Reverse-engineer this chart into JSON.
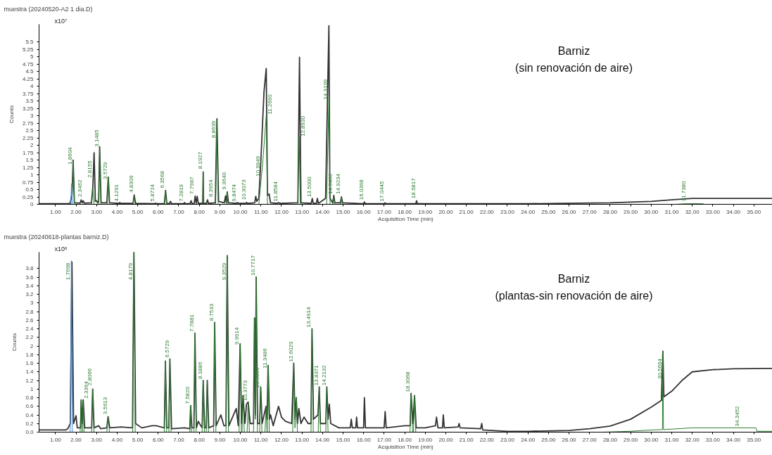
{
  "chart_data": [
    {
      "type": "line",
      "title": "muestra (20240520-A2 1 dia.D)",
      "subtitle": "Barniz\n(sin renovación de aire)",
      "xlabel": "Acquisition Time (min)",
      "ylabel": "Counts",
      "xlim": [
        0.2,
        35.9
      ],
      "ylim": [
        0,
        6.1
      ],
      "xticks": [
        {
          "value": 1,
          "label": "1.00"
        },
        {
          "value": 2,
          "label": "2.00"
        },
        {
          "value": 3,
          "label": "3.00"
        },
        {
          "value": 4,
          "label": "4.00"
        },
        {
          "value": 5,
          "label": "5.00"
        },
        {
          "value": 6,
          "label": "6.00"
        },
        {
          "value": 7,
          "label": "7.00"
        },
        {
          "value": 8,
          "label": "8.00"
        },
        {
          "value": 9,
          "label": "9.00"
        },
        {
          "value": 10,
          "label": "10.00"
        },
        {
          "value": 11,
          "label": "11.00"
        },
        {
          "value": 12,
          "label": "12.00"
        },
        {
          "value": 13,
          "label": "13.00"
        },
        {
          "value": 14,
          "label": "14.00"
        },
        {
          "value": 15,
          "label": "15.00"
        },
        {
          "value": 16,
          "label": "16.00"
        },
        {
          "value": 17,
          "label": "17.00"
        },
        {
          "value": 18,
          "label": "18.00"
        },
        {
          "value": 19,
          "label": "19.00"
        },
        {
          "value": 20,
          "label": "20.00"
        },
        {
          "value": 21,
          "label": "21.00"
        },
        {
          "value": 22,
          "label": "22.00"
        },
        {
          "value": 23,
          "label": "23.00"
        },
        {
          "value": 24,
          "label": "24.00"
        },
        {
          "value": 25,
          "label": "25.00"
        },
        {
          "value": 26,
          "label": "26.00"
        },
        {
          "value": 27,
          "label": "27.00"
        },
        {
          "value": 28,
          "label": "28.00"
        },
        {
          "value": 29,
          "label": "29.00"
        },
        {
          "value": 30,
          "label": "30.00"
        },
        {
          "value": 31,
          "label": "31.00"
        },
        {
          "value": 32,
          "label": "32.00"
        },
        {
          "value": 33,
          "label": "33.00"
        },
        {
          "value": 34,
          "label": "34.00"
        },
        {
          "value": 35,
          "label": "35.00"
        }
      ],
      "yticks": [
        0,
        0.25,
        0.5,
        0.75,
        1,
        1.25,
        1.5,
        1.75,
        2,
        2.25,
        2.5,
        2.75,
        3,
        3.25,
        3.5,
        3.75,
        4,
        4.25,
        4.5,
        4.75,
        5,
        5.25,
        5.5
      ],
      "grid": false,
      "series": [
        {
          "color": "#333333",
          "x": [
            0.2,
            1.7,
            1.8,
            1.86,
            1.92,
            2.2,
            2.25,
            2.3,
            2.35,
            2.4,
            2.75,
            2.82,
            2.88,
            2.94,
            3.0,
            3.05,
            3.1,
            3.15,
            3.22,
            3.5,
            3.57,
            3.63,
            4.1,
            4.13,
            4.16,
            4.78,
            4.83,
            4.9,
            5.85,
            5.87,
            5.9,
            6.3,
            6.36,
            6.42,
            6.55,
            6.6,
            6.65,
            7.25,
            7.28,
            7.31,
            7.55,
            7.6,
            7.65,
            7.75,
            7.8,
            7.85,
            7.9,
            7.95,
            8.17,
            8.19,
            8.21,
            8.35,
            8.4,
            8.45,
            8.78,
            8.86,
            8.94,
            9.22,
            9.28,
            9.32,
            9.36,
            9.42,
            9.8,
            9.85,
            9.9,
            10.25,
            10.3,
            10.35,
            10.7,
            10.75,
            10.8,
            10.9,
            11.0,
            11.15,
            11.26,
            11.32,
            11.4,
            11.47,
            11.8,
            11.86,
            11.92,
            12.8,
            12.88,
            12.95,
            13.45,
            13.5,
            13.55,
            13.7,
            13.75,
            13.8,
            14.15,
            14.31,
            14.36,
            14.5,
            14.55,
            14.6,
            14.87,
            14.92,
            14.98,
            16.0,
            16.04,
            16.08,
            17.0,
            17.04,
            17.08,
            18.54,
            18.58,
            18.62,
            24,
            28,
            30,
            31,
            32,
            35.9
          ],
          "values": [
            0.02,
            0.02,
            0.3,
            1.5,
            0.05,
            0.04,
            0.15,
            0.05,
            0.12,
            0.04,
            0.05,
            0.6,
            1.75,
            0.1,
            0.12,
            0.05,
            0.1,
            1.95,
            0.05,
            0.05,
            0.92,
            0.05,
            0.03,
            0.06,
            0.03,
            0.03,
            0.32,
            0.03,
            0.02,
            0.04,
            0.02,
            0.02,
            0.47,
            0.03,
            0.02,
            0.1,
            0.02,
            0.02,
            0.06,
            0.02,
            0.02,
            0.12,
            0.02,
            0.02,
            0.28,
            0.03,
            0.27,
            0.03,
            0.03,
            1.1,
            0.03,
            0.03,
            0.15,
            0.03,
            0.05,
            2.9,
            0.1,
            0.05,
            0.28,
            0.05,
            0.42,
            0.05,
            0.03,
            0.06,
            0.03,
            0.03,
            0.06,
            0.03,
            0.05,
            0.27,
            0.1,
            0.2,
            1.5,
            3.8,
            4.6,
            0.3,
            0.35,
            0.05,
            0.03,
            0.06,
            0.03,
            0.05,
            4.98,
            0.05,
            0.03,
            0.2,
            0.03,
            0.03,
            0.2,
            0.03,
            0.2,
            6.05,
            0.2,
            0.05,
            0.3,
            0.05,
            0.05,
            0.25,
            0.05,
            0.02,
            0.08,
            0.02,
            0.02,
            0.05,
            0.02,
            0.02,
            0.12,
            0.02,
            0.02,
            0.05,
            0.1,
            0.15,
            0.2,
            0.2
          ]
        },
        {
          "color": "#2e7d32",
          "x": [
            1.8,
            1.86,
            1.92,
            2.76,
            2.82,
            2.88,
            3.1,
            3.15,
            3.21,
            3.52,
            3.57,
            3.62,
            4.78,
            4.83,
            4.88,
            6.31,
            6.36,
            6.41,
            8.17,
            8.19,
            8.21,
            8.8,
            8.86,
            8.92,
            9.32,
            9.36,
            9.4,
            10.9,
            11.1,
            11.26,
            11.32,
            12.8,
            12.86,
            12.92,
            14.2,
            14.31,
            14.37,
            14.51,
            14.55,
            14.59,
            14.88,
            14.92,
            14.96,
            31.2,
            31.7,
            32.5,
            32.6
          ],
          "values": [
            0,
            1.45,
            0,
            0,
            0.55,
            0,
            0,
            1.9,
            0,
            0,
            0.9,
            0,
            0,
            0.3,
            0,
            0,
            0.45,
            0,
            0,
            1.1,
            0,
            0,
            2.85,
            0,
            0,
            0.4,
            0,
            0,
            1.5,
            3.0,
            0,
            0,
            2.3,
            0,
            0,
            3.6,
            0,
            0,
            0.25,
            0,
            0,
            0.25,
            0,
            0,
            0.02,
            0.02,
            0
          ]
        },
        {
          "color": "#4a90d9",
          "x": [
            1.74,
            1.78,
            1.82
          ],
          "values": [
            0,
            0.7,
            0
          ]
        }
      ],
      "annotations": [
        "x10⁷",
        {
          "text": "1.8604",
          "x": 1.8604,
          "y": 1.3
        },
        {
          "text": "2.3462",
          "x": 2.3462,
          "y": 0.2
        },
        {
          "text": "2.8155",
          "x": 2.8155,
          "y": 0.85
        },
        {
          "text": "3.1485",
          "x": 3.1485,
          "y": 1.9
        },
        {
          "text": "3.5729",
          "x": 3.5729,
          "y": 0.8
        },
        {
          "text": "4.1291",
          "x": 4.1291,
          "y": 0.05
        },
        {
          "text": "4.8309",
          "x": 4.8309,
          "y": 0.35
        },
        {
          "text": "5.8724",
          "x": 5.8724,
          "y": 0.05
        },
        {
          "text": "6.3568",
          "x": 6.3568,
          "y": 0.5
        },
        {
          "text": "7.2819",
          "x": 7.2819,
          "y": 0.05
        },
        {
          "text": "7.7987",
          "x": 7.7987,
          "y": 0.3
        },
        {
          "text": "8.1927",
          "x": 8.1927,
          "y": 1.15
        },
        {
          "text": "8.3954",
          "x": 8.3954,
          "y": 0.2
        },
        {
          "text": "8.8639",
          "x": 8.8639,
          "y": 2.2
        },
        {
          "text": "9.3640",
          "x": 9.364,
          "y": 0.45
        },
        {
          "text": "9.8474",
          "x": 9.8474,
          "y": 0.05
        },
        {
          "text": "10.3073",
          "x": 10.3073,
          "y": 0.1
        },
        {
          "text": "10.9949",
          "x": 10.9949,
          "y": 0.9
        },
        {
          "text": "11.2690",
          "x": 11.269,
          "y": 3.0
        },
        {
          "text": "11.8584",
          "x": 11.8584,
          "y": 0.05
        },
        {
          "text": "12.8930",
          "x": 12.893,
          "y": 2.25
        },
        {
          "text": "13.5000",
          "x": 13.5,
          "y": 0.2
        },
        {
          "text": "14.3109",
          "x": 14.3109,
          "y": 3.5
        },
        {
          "text": "14.5466",
          "x": 14.5466,
          "y": 0.3
        },
        {
          "text": "14.9234",
          "x": 14.9234,
          "y": 0.3
        },
        {
          "text": "16.0368",
          "x": 16.0368,
          "y": 0.1
        },
        {
          "text": "17.0445",
          "x": 17.0445,
          "y": 0.05
        },
        {
          "text": "18.5817",
          "x": 18.5817,
          "y": 0.15
        },
        {
          "text": "31.7380",
          "x": 31.738,
          "y": 0.05
        }
      ]
    },
    {
      "type": "line",
      "title": "muestra (20240618-plantas barniz.D)",
      "subtitle": "Barniz\n(plantas-sin renovación de aire)",
      "xlabel": "Acquisition Time (min)",
      "ylabel": "Counts",
      "xlim": [
        0.2,
        35.9
      ],
      "ylim": [
        0,
        4.18
      ],
      "xticks": [
        {
          "value": 1,
          "label": "1.00"
        },
        {
          "value": 2,
          "label": "2.00"
        },
        {
          "value": 3,
          "label": "3.00"
        },
        {
          "value": 4,
          "label": "4.00"
        },
        {
          "value": 5,
          "label": "5.00"
        },
        {
          "value": 6,
          "label": "6.00"
        },
        {
          "value": 7,
          "label": "7.00"
        },
        {
          "value": 8,
          "label": "8.00"
        },
        {
          "value": 9,
          "label": "9.00"
        },
        {
          "value": 10,
          "label": "10.00"
        },
        {
          "value": 11,
          "label": "11.00"
        },
        {
          "value": 12,
          "label": "12.00"
        },
        {
          "value": 13,
          "label": "13.00"
        },
        {
          "value": 14,
          "label": "14.00"
        },
        {
          "value": 15,
          "label": "15.00"
        },
        {
          "value": 16,
          "label": "16.00"
        },
        {
          "value": 17,
          "label": "17.00"
        },
        {
          "value": 18,
          "label": "18.00"
        },
        {
          "value": 19,
          "label": "19.00"
        },
        {
          "value": 20,
          "label": "20.00"
        },
        {
          "value": 21,
          "label": "21.00"
        },
        {
          "value": 22,
          "label": "22.00"
        },
        {
          "value": 23,
          "label": "23.00"
        },
        {
          "value": 24,
          "label": "24.00"
        },
        {
          "value": 25,
          "label": "25.00"
        },
        {
          "value": 26,
          "label": "26.00"
        },
        {
          "value": 27,
          "label": "27.00"
        },
        {
          "value": 28,
          "label": "28.00"
        },
        {
          "value": 29,
          "label": "29.00"
        },
        {
          "value": 30,
          "label": "30.00"
        },
        {
          "value": 31,
          "label": "31.00"
        },
        {
          "value": 32,
          "label": "32.00"
        },
        {
          "value": 33,
          "label": "33.00"
        },
        {
          "value": 34,
          "label": "34.00"
        },
        {
          "value": 35,
          "label": "35.00"
        }
      ],
      "yticks": [
        {
          "value": 0,
          "label": "0.0"
        },
        0.2,
        0.4,
        0.6,
        0.8,
        1,
        1.2,
        1.4,
        1.6,
        1.8,
        2,
        2.2,
        2.4,
        2.6,
        2.8,
        3,
        3.2,
        3.4,
        3.6,
        3.8
      ],
      "grid": false,
      "series": [
        {
          "color": "#333333",
          "x": [
            0.2,
            1.5,
            1.6,
            1.72,
            1.8,
            1.88,
            2.0,
            2.06,
            2.22,
            2.25,
            2.3,
            2.35,
            2.42,
            2.76,
            2.81,
            2.88,
            3.1,
            3.2,
            3.5,
            3.56,
            3.64,
            4.2,
            4.75,
            4.82,
            4.9,
            5.2,
            5.7,
            5.9,
            6.3,
            6.35,
            6.42,
            6.52,
            6.57,
            6.65,
            7.3,
            7.54,
            7.58,
            7.64,
            7.74,
            7.79,
            7.86,
            7.95,
            8.14,
            8.19,
            8.26,
            8.34,
            8.39,
            8.46,
            8.7,
            8.75,
            8.82,
            9.05,
            9.2,
            9.3,
            9.36,
            9.44,
            9.8,
            9.9,
            9.99,
            10.06,
            10.13,
            10.22,
            10.3,
            10.38,
            10.48,
            10.64,
            10.69,
            10.73,
            10.77,
            10.84,
            10.94,
            10.99,
            11.06,
            11.25,
            11.3,
            11.35,
            11.42,
            11.47,
            11.6,
            11.86,
            12.0,
            12.2,
            12.5,
            12.6,
            12.66,
            12.72,
            12.78,
            12.85,
            12.95,
            13.1,
            13.3,
            13.44,
            13.49,
            13.56,
            13.78,
            13.84,
            13.9,
            14.16,
            14.21,
            14.27,
            14.33,
            14.4,
            14.8,
            15.35,
            15.4,
            15.45,
            15.62,
            15.66,
            15.7,
            16.0,
            16.04,
            16.09,
            17.0,
            17.05,
            17.1,
            18.0,
            18.27,
            18.31,
            18.4,
            18.48,
            18.56,
            19.0,
            19.5,
            19.55,
            19.62,
            19.84,
            19.88,
            19.93,
            20.6,
            20.65,
            20.7,
            21.7,
            21.75,
            21.8,
            23,
            24,
            26,
            27,
            28,
            29,
            30,
            30.5,
            30.57,
            30.62,
            31,
            31.5,
            32,
            33,
            34,
            35.9
          ],
          "values": [
            0.05,
            0.05,
            0.08,
            0.2,
            3.95,
            0.2,
            0.38,
            0.1,
            0.1,
            0.75,
            0.2,
            0.75,
            0.1,
            0.1,
            1.0,
            0.1,
            0.15,
            0.08,
            0.1,
            0.36,
            0.1,
            0.12,
            0.1,
            4.18,
            0.2,
            0.1,
            0.15,
            0.15,
            0.1,
            1.65,
            0.1,
            0.1,
            1.7,
            0.08,
            0.1,
            0.08,
            0.62,
            0.1,
            0.1,
            2.3,
            0.1,
            0.25,
            0.1,
            1.2,
            0.1,
            0.1,
            1.2,
            0.1,
            0.15,
            2.55,
            0.15,
            0.4,
            0.15,
            0.15,
            4.1,
            0.15,
            0.55,
            0.15,
            2.05,
            0.2,
            0.85,
            0.2,
            0.65,
            0.7,
            0.2,
            0.2,
            2.65,
            0.4,
            3.6,
            0.2,
            0.2,
            1.05,
            0.2,
            0.6,
            0.3,
            1.55,
            0.3,
            0.4,
            0.15,
            0.6,
            0.35,
            0.25,
            0.2,
            1.6,
            0.3,
            0.8,
            0.2,
            0.55,
            0.2,
            0.35,
            0.2,
            0.2,
            2.4,
            0.3,
            0.4,
            1.05,
            0.2,
            0.2,
            1.05,
            0.3,
            0.65,
            0.2,
            0.1,
            0.1,
            0.3,
            0.1,
            0.1,
            0.35,
            0.1,
            0.1,
            0.8,
            0.1,
            0.1,
            0.48,
            0.1,
            0.15,
            0.15,
            0.9,
            0.2,
            0.85,
            0.1,
            0.1,
            0.15,
            0.35,
            0.1,
            0.1,
            0.4,
            0.1,
            0.12,
            0.2,
            0.1,
            0.08,
            0.2,
            0.05,
            0.02,
            0.02,
            0.04,
            0.08,
            0.14,
            0.3,
            0.58,
            0.74,
            1.88,
            0.82,
            0.95,
            1.2,
            1.4,
            1.45,
            1.47,
            1.48
          ]
        },
        {
          "color": "#2e7d32",
          "x": [
            2.2,
            2.25,
            2.29,
            2.3,
            2.34,
            2.39,
            2.76,
            2.81,
            2.87,
            3.5,
            3.56,
            3.63,
            4.76,
            4.82,
            4.88,
            6.3,
            6.35,
            6.41,
            6.52,
            6.57,
            6.63,
            7.54,
            7.58,
            7.63,
            7.74,
            7.79,
            7.85,
            8.14,
            8.19,
            8.25,
            8.34,
            8.39,
            8.45,
            8.7,
            8.75,
            8.81,
            9.3,
            9.36,
            9.42,
            9.94,
            9.99,
            10.05,
            10.08,
            10.13,
            10.19,
            10.33,
            10.38,
            10.44,
            10.64,
            10.69,
            10.73,
            10.77,
            10.83,
            10.94,
            10.99,
            11.05,
            11.2,
            11.25,
            11.3,
            11.31,
            11.35,
            11.41,
            12.55,
            12.6,
            12.66,
            12.72,
            12.78,
            13.44,
            13.49,
            13.55,
            13.79,
            13.84,
            13.9,
            14.16,
            14.21,
            14.27,
            18.26,
            18.31,
            18.39,
            18.43,
            18.48,
            18.54,
            27.6,
            29,
            30,
            30.55,
            30.57,
            30.6,
            31,
            32,
            35.1,
            35.15,
            35.9
          ],
          "values": [
            0,
            0.75,
            0,
            0,
            0.75,
            0,
            0,
            1.0,
            0,
            0,
            0.35,
            0,
            0,
            4.18,
            0,
            0,
            1.65,
            0,
            0,
            1.7,
            0,
            0,
            0.62,
            0,
            0,
            2.3,
            0,
            0,
            1.2,
            0,
            0,
            1.2,
            0,
            0,
            2.55,
            0,
            0,
            4.1,
            0,
            0,
            2.05,
            0,
            0,
            0.85,
            0,
            0,
            0.7,
            0,
            0,
            2.65,
            0.3,
            3.6,
            0,
            0,
            1.05,
            0,
            0,
            0.6,
            0,
            0,
            1.55,
            0,
            0,
            1.6,
            0.1,
            0.8,
            0,
            0,
            2.4,
            0,
            0,
            1.05,
            0,
            0,
            1.05,
            0,
            0,
            0.9,
            0,
            0,
            0.85,
            0,
            0,
            0.02,
            0.05,
            0.06,
            1.88,
            0.06,
            0.07,
            0.1,
            0.1,
            0.02,
            0.02
          ]
        },
        {
          "color": "#4a90d9",
          "x": [
            1.72,
            1.77,
            1.82
          ],
          "values": [
            0,
            3.98,
            0
          ]
        }
      ],
      "annotations": [
        "x10⁶",
        {
          "text": "1.7698",
          "x": 1.7698,
          "y": 3.5
        },
        {
          "text": "2.3364",
          "x": 2.3364,
          "y": 0.75
        },
        {
          "text": "2.8066",
          "x": 2.8066,
          "y": 1.05
        },
        {
          "text": "3.5613",
          "x": 3.5613,
          "y": 0.38
        },
        {
          "text": "4.8179",
          "x": 4.8179,
          "y": 3.5
        },
        {
          "text": "6.5729",
          "x": 6.5729,
          "y": 1.7
        },
        {
          "text": "7.5820",
          "x": 7.582,
          "y": 0.62
        },
        {
          "text": "7.7881",
          "x": 7.7881,
          "y": 2.3
        },
        {
          "text": "8.1886",
          "x": 8.1886,
          "y": 1.2
        },
        {
          "text": "8.7533",
          "x": 8.7533,
          "y": 2.55
        },
        {
          "text": "9.3529",
          "x": 9.3529,
          "y": 3.5
        },
        {
          "text": "9.9914",
          "x": 9.9914,
          "y": 2.0
        },
        {
          "text": "10.3773",
          "x": 10.3773,
          "y": 0.7
        },
        {
          "text": "10.7717",
          "x": 10.7717,
          "y": 3.6
        },
        {
          "text": "10.9856",
          "x": 10.9856,
          "y": 1.0
        },
        {
          "text": "11.3486",
          "x": 11.3486,
          "y": 1.45
        },
        {
          "text": "12.6029",
          "x": 12.6029,
          "y": 1.6
        },
        {
          "text": "13.4914",
          "x": 13.4914,
          "y": 2.4
        },
        {
          "text": "13.8371",
          "x": 13.8371,
          "y": 1.05
        },
        {
          "text": "14.2132",
          "x": 14.2132,
          "y": 1.05
        },
        {
          "text": "18.3068",
          "x": 18.3068,
          "y": 0.9
        },
        {
          "text": "30.5664",
          "x": 30.5664,
          "y": 1.2
        },
        {
          "text": "34.3452",
          "x": 34.3452,
          "y": 0.1
        }
      ]
    }
  ]
}
